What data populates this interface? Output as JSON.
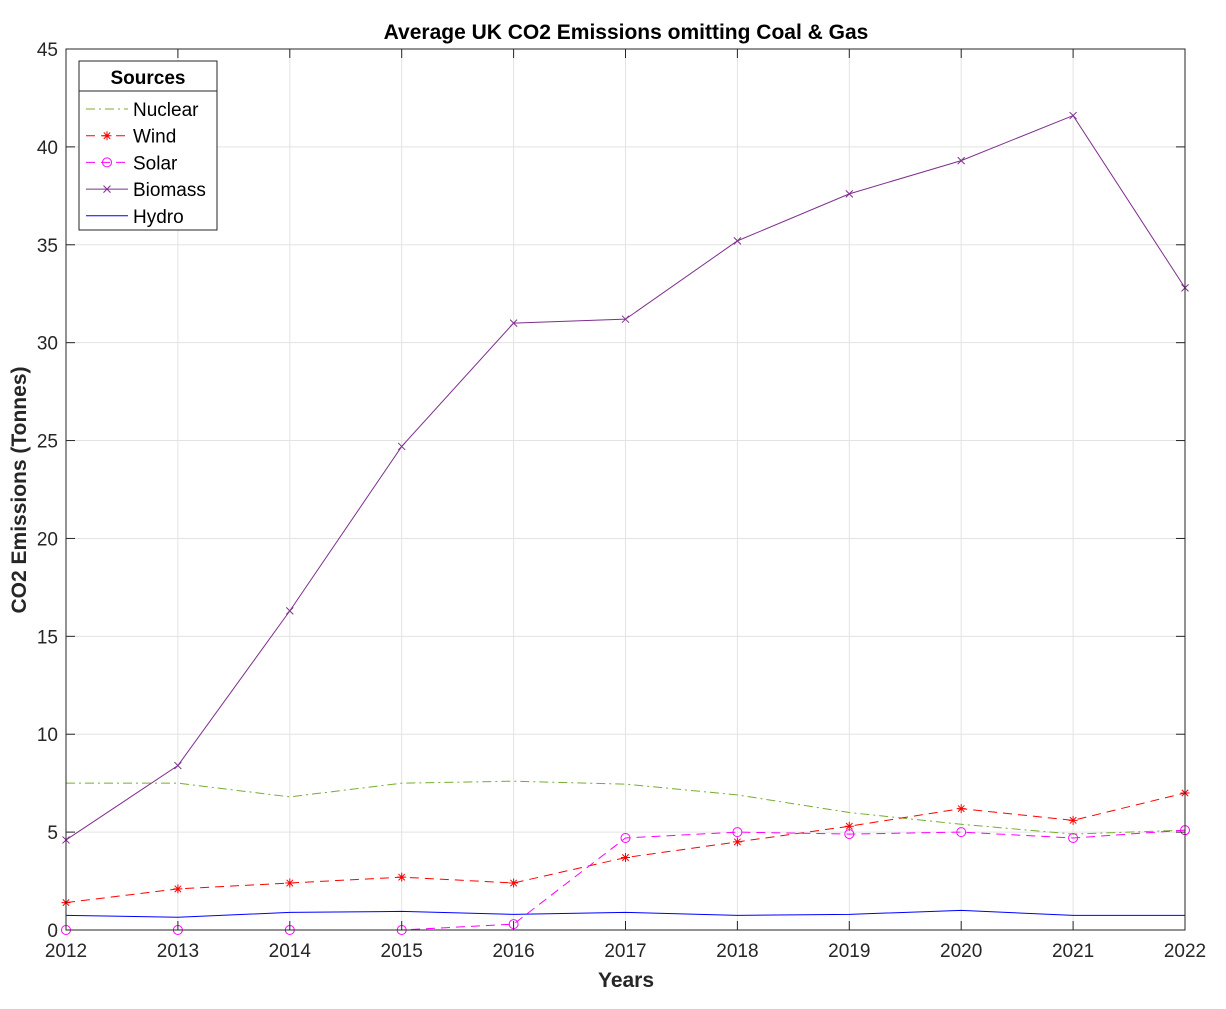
{
  "chart_data": {
    "type": "line",
    "title": "Average UK CO2 Emissions omitting Coal & Gas",
    "xlabel": "Years",
    "ylabel": "CO2 Emissions (Tonnes)",
    "x": [
      2012,
      2013,
      2014,
      2015,
      2016,
      2017,
      2018,
      2019,
      2020,
      2021,
      2022
    ],
    "xlim": [
      2012,
      2022
    ],
    "ylim": [
      0,
      45
    ],
    "yticks": [
      0,
      5,
      10,
      15,
      20,
      25,
      30,
      35,
      40,
      45
    ],
    "grid": true,
    "legend": {
      "title": "Sources",
      "position": "top-left"
    },
    "series": [
      {
        "name": "Nuclear",
        "color": "#77AC30",
        "line": "dashdot",
        "marker": "none",
        "values": [
          7.5,
          7.5,
          6.8,
          7.5,
          7.6,
          7.45,
          6.9,
          6.0,
          5.4,
          4.9,
          5.1
        ]
      },
      {
        "name": "Wind",
        "color": "#FF0000",
        "line": "dashed",
        "marker": "asterisk",
        "values": [
          1.4,
          2.1,
          2.4,
          2.7,
          2.4,
          3.7,
          4.5,
          5.3,
          6.2,
          5.6,
          7.0
        ]
      },
      {
        "name": "Solar",
        "color": "#FF00FF",
        "line": "dashed",
        "marker": "circle",
        "values": [
          0.0,
          0.0,
          0.0,
          0.0,
          0.3,
          4.7,
          5.0,
          4.9,
          5.0,
          4.7,
          5.1
        ]
      },
      {
        "name": "Biomass",
        "color": "#7E2F8E",
        "line": "solid",
        "marker": "x",
        "values": [
          4.6,
          8.4,
          16.3,
          24.7,
          31.0,
          31.2,
          35.2,
          37.6,
          39.3,
          41.6,
          32.8
        ]
      },
      {
        "name": "Hydro",
        "color": "#0000FF",
        "line": "solid",
        "marker": "none",
        "values": [
          0.75,
          0.65,
          0.9,
          0.95,
          0.8,
          0.9,
          0.75,
          0.8,
          1.0,
          0.75,
          0.75
        ]
      }
    ]
  }
}
